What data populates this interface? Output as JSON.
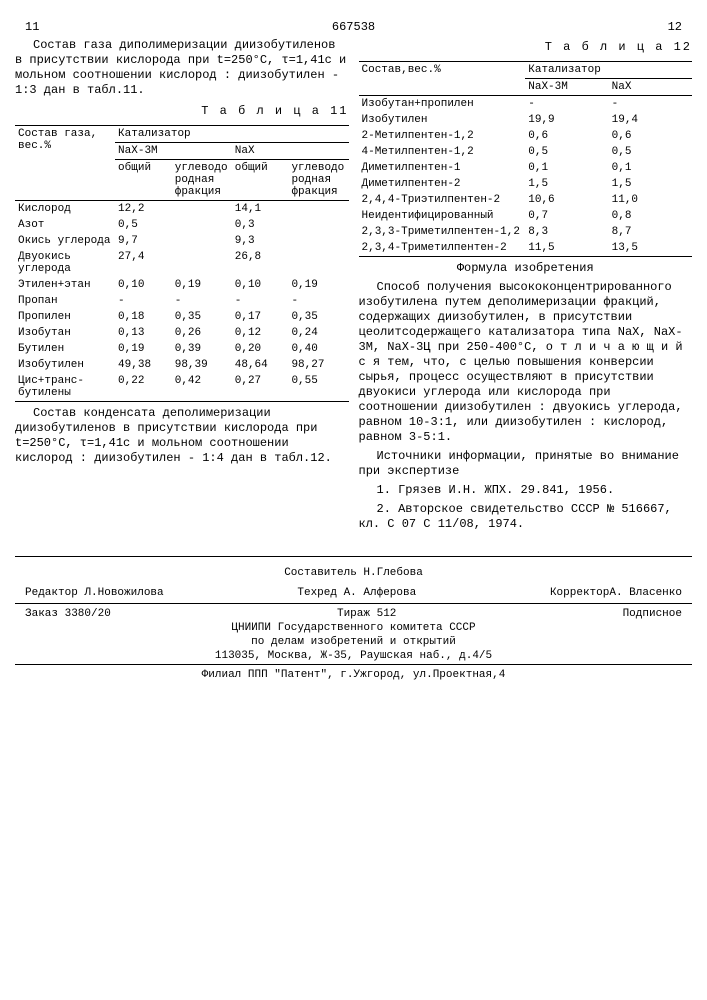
{
  "doc_id": "667538",
  "header": {
    "left_pg": "11",
    "right_pg": "12"
  },
  "left": {
    "para1": "Состав газа диполимеризации диизобутиленов в присутствии кислорода при t=250°С, τ=1,41с и мольном соотношении кислород : диизобутилен - 1:3 дан в табл.11.",
    "table11_caption": "Т а б л и ц а  11",
    "t11": {
      "head_left": "Состав газа, вес.%",
      "head_cat": "Катализатор",
      "head_nax3m": "NaX-3M",
      "head_nax": "NaX",
      "sub_common": "общий",
      "sub_frac": "углеводородная фракция",
      "rows": [
        {
          "n": "Кислород",
          "a": "12,2",
          "b": "",
          "c": "14,1",
          "d": ""
        },
        {
          "n": "Азот",
          "a": "0,5",
          "b": "",
          "c": "0,3",
          "d": ""
        },
        {
          "n": "Окись углерода",
          "a": "9,7",
          "b": "",
          "c": "9,3",
          "d": ""
        },
        {
          "n": "Двуокись углерода",
          "a": "27,4",
          "b": "",
          "c": "26,8",
          "d": ""
        },
        {
          "n": "Этилен+этан",
          "a": "0,10",
          "b": "0,19",
          "c": "0,10",
          "d": "0,19"
        },
        {
          "n": "Пропан",
          "a": "-",
          "b": "-",
          "c": "-",
          "d": "-"
        },
        {
          "n": "Пропилен",
          "a": "0,18",
          "b": "0,35",
          "c": "0,17",
          "d": "0,35"
        },
        {
          "n": "Изобутан",
          "a": "0,13",
          "b": "0,26",
          "c": "0,12",
          "d": "0,24"
        },
        {
          "n": "Бутилен",
          "a": "0,19",
          "b": "0,39",
          "c": "0,20",
          "d": "0,40"
        },
        {
          "n": "Изобутилен",
          "a": "49,38",
          "b": "98,39",
          "c": "48,64",
          "d": "98,27"
        },
        {
          "n": "Цис+транс-бутилены",
          "a": "0,22",
          "b": "0,42",
          "c": "0,27",
          "d": "0,55"
        }
      ]
    },
    "para2": "Состав конденсата деполимеризации диизобутиленов в присутствии кислорода при t=250°С, τ=1,41с и мольном соотношении кислород : диизобутилен - 1:4 дан в табл.12."
  },
  "right": {
    "table12_caption": "Т а б л и ц а  12",
    "t12": {
      "head_left": "Состав,вес.%",
      "head_cat": "Катализатор",
      "head_nax3m": "NaX-3M",
      "head_nax": "NaX",
      "rows": [
        {
          "n": "Изобутан+пропилен",
          "a": "-",
          "b": "-"
        },
        {
          "n": "Изобутилен",
          "a": "19,9",
          "b": "19,4"
        },
        {
          "n": "2-Метилпентен-1,2",
          "a": "0,6",
          "b": "0,6"
        },
        {
          "n": "4-Метилпентен-1,2",
          "a": "0,5",
          "b": "0,5"
        },
        {
          "n": "Диметилпентен-1",
          "a": "0,1",
          "b": "0,1"
        },
        {
          "n": "Диметилпентен-2",
          "a": "1,5",
          "b": "1,5"
        },
        {
          "n": "2,4,4-Триэтилпентен-2",
          "a": "10,6",
          "b": "11,0"
        },
        {
          "n": "Неидентифицированный",
          "a": "0,7",
          "b": "0,8"
        },
        {
          "n": "2,3,3-Триметилпентен-1,2",
          "a": "8,3",
          "b": "8,7"
        },
        {
          "n": "2,3,4-Триметилпентен-2",
          "a": "11,5",
          "b": "13,5"
        }
      ]
    },
    "formula_title": "Формула изобретения",
    "formula_body": "Способ получения высококонцентрированного изобутилена путем деполимеризации фракций, содержащих диизобутилен, в присутствии цеолитсодержащего катализатора типа NaX, NaX-3М, NaX-3Ц при 250-400°С, о т л и ч а ю щ и й с я  тем, что, с целью повышения конверсии сырья, процесс осуществляют в присутствии двуокиси углерода или кислорода при соотношении диизобутилен : двуокись углерода, равном 10-3:1, или диизобутилен : кислород, равном 3-5:1.",
    "sources_title": "Источники информации, принятые во внимание при экспертизе",
    "src1": "1. Грязев И.Н. ЖПХ. 29.841, 1956.",
    "src2": "2. Авторское свидетельство СССР № 516667, кл. С 07 С 11/08, 1974."
  },
  "footer": {
    "compiler": "Составитель Н.Глебова",
    "editor": "Редактор Л.Новожилова",
    "tech": "Техред А. Алферова",
    "corrector": "КорректорА. Власенко",
    "order": "Заказ 3380/20",
    "tirage": "Тираж 512",
    "sign": "Подписное",
    "org1": "ЦНИИПИ Государственного комитета СССР",
    "org2": "по делам изобретений и открытий",
    "addr": "113035, Москва, Ж-35, Раушская наб., д.4/5",
    "branch": "Филиал ППП \"Патент\", г.Ужгород, ул.Проектная,4"
  }
}
